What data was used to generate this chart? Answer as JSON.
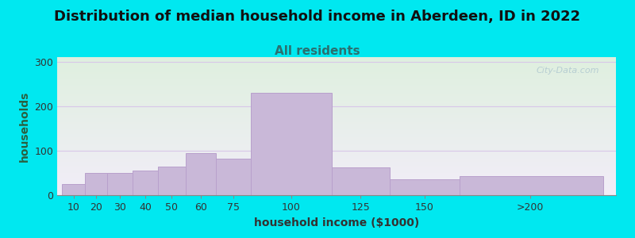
{
  "title": "Distribution of median household income in Aberdeen, ID in 2022",
  "subtitle": "All residents",
  "xlabel": "household income ($1000)",
  "ylabel": "households",
  "bar_left_edges": [
    5,
    14,
    23,
    33,
    43,
    54,
    66,
    80,
    112,
    135,
    163
  ],
  "bar_right_edges": [
    14,
    23,
    33,
    43,
    54,
    66,
    80,
    112,
    135,
    163,
    220
  ],
  "bar_heights": [
    25,
    50,
    50,
    55,
    65,
    95,
    82,
    230,
    62,
    35,
    42
  ],
  "bar_color": "#c9b8d8",
  "bar_edgecolor": "#b8a0cc",
  "background_outer": "#00e8f0",
  "bg_top_color": "#dff0df",
  "bg_bottom_color": "#f2edf8",
  "grid_color": "#d8c8e8",
  "title_fontsize": 13,
  "subtitle_fontsize": 11,
  "axis_label_fontsize": 10,
  "tick_fontsize": 9,
  "ylabel_color": "#2a6040",
  "subtitle_color": "#2a7070",
  "xlabel_color": "#333333",
  "title_color": "#111111",
  "ylim": [
    0,
    310
  ],
  "yticks": [
    0,
    100,
    200,
    300
  ],
  "xtick_labels": [
    "10",
    "20",
    "30",
    "40",
    "50",
    "60",
    "75",
    "100",
    "125",
    "150",
    ">200"
  ],
  "xtick_positions": [
    9.5,
    18.5,
    28,
    38,
    48.5,
    60,
    73,
    96,
    123.5,
    149,
    191
  ],
  "xlim": [
    3,
    225
  ],
  "watermark": "City-Data.com"
}
